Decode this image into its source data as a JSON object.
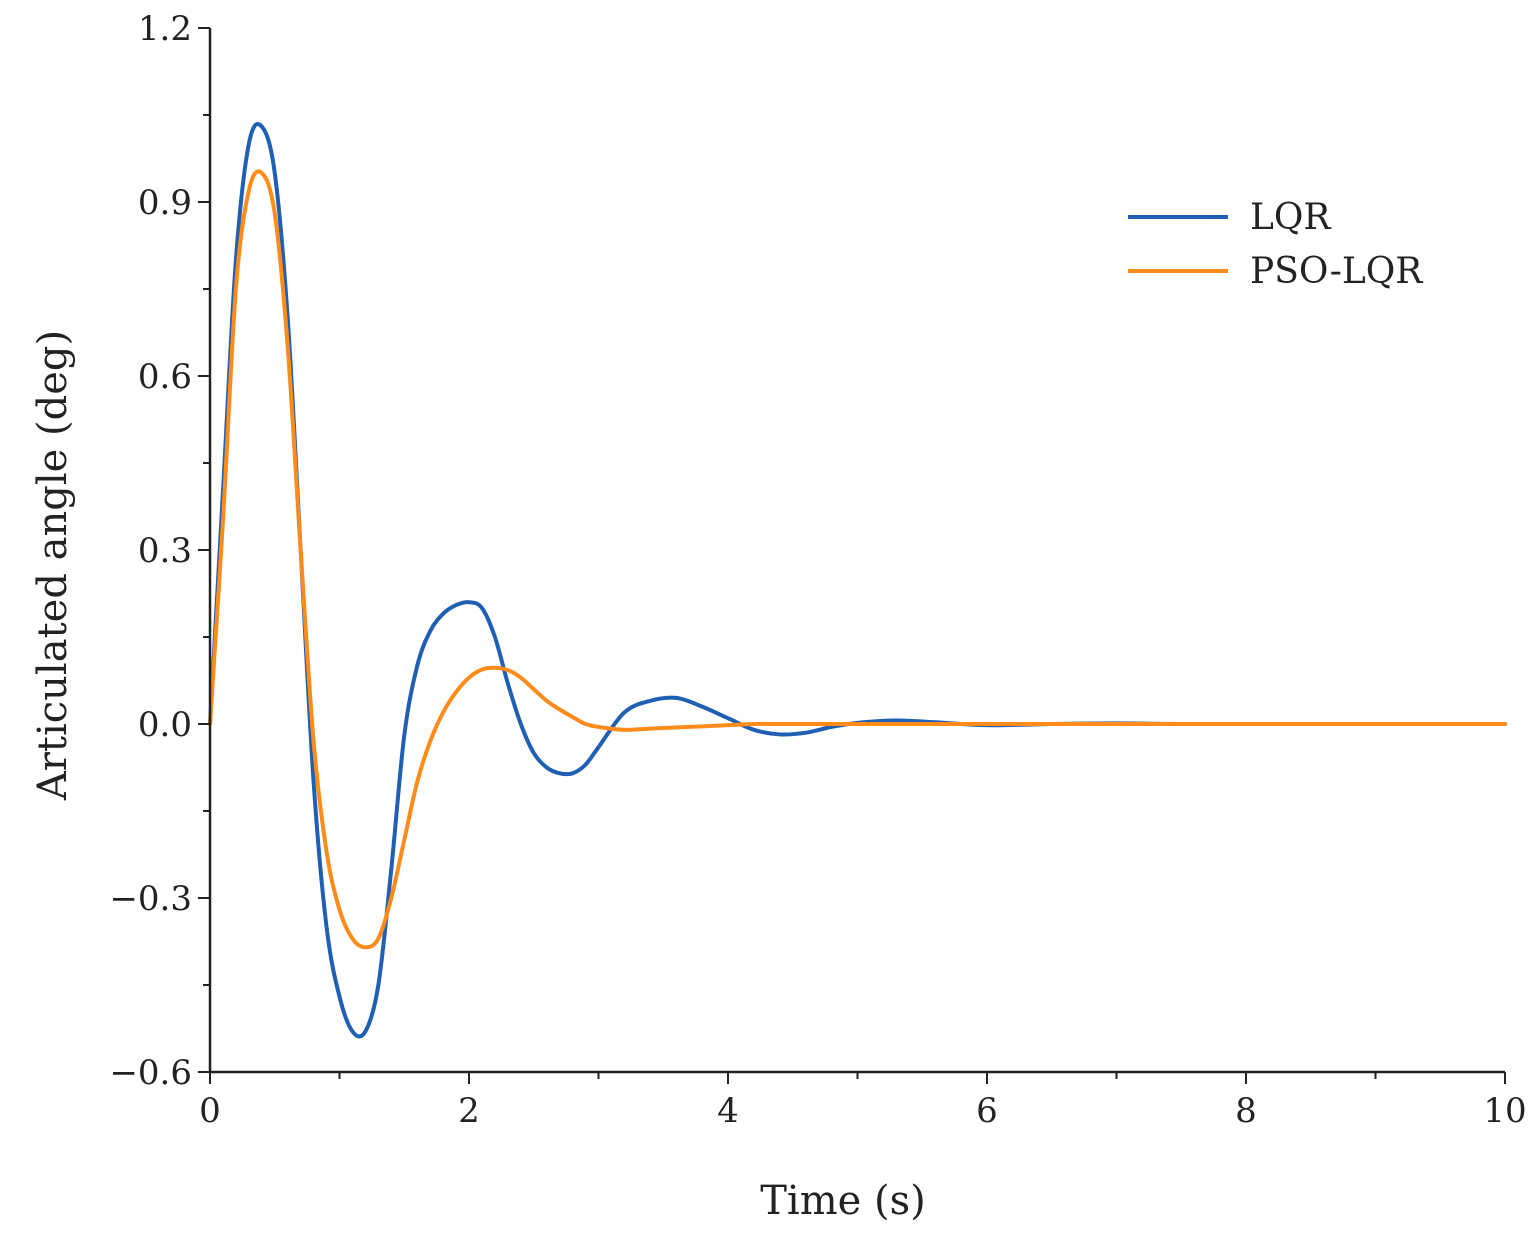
{
  "chart_data": {
    "type": "line",
    "title": "",
    "xlabel": "Time (s)",
    "ylabel": "Articulated angle (deg)",
    "xlim": [
      0,
      10
    ],
    "ylim": [
      -0.6,
      1.2
    ],
    "x_ticks": [
      "0",
      "2",
      "4",
      "6",
      "8",
      "10"
    ],
    "y_ticks": [
      "−0.6",
      "−0.3",
      "0.0",
      "0.3",
      "0.6",
      "0.9",
      "1.2"
    ],
    "grid": false,
    "legend_position": "top-right",
    "series": [
      {
        "name": "LQR",
        "color": "#1f5fb4",
        "x": [
          0,
          0.1,
          0.2,
          0.3,
          0.4,
          0.5,
          0.6,
          0.7,
          0.8,
          0.9,
          1.0,
          1.1,
          1.2,
          1.3,
          1.4,
          1.5,
          1.6,
          1.7,
          1.8,
          1.9,
          2.0,
          2.1,
          2.2,
          2.3,
          2.4,
          2.5,
          2.6,
          2.7,
          2.8,
          2.9,
          3.0,
          3.2,
          3.4,
          3.6,
          3.8,
          4.0,
          4.2,
          4.4,
          4.6,
          4.8,
          5.0,
          5.3,
          5.6,
          6.0,
          6.5,
          7.0,
          7.5,
          8.0,
          9.0,
          10.0
        ],
        "y": [
          0.0,
          0.4,
          0.8,
          1.0,
          1.03,
          0.95,
          0.7,
          0.3,
          -0.1,
          -0.35,
          -0.47,
          -0.53,
          -0.53,
          -0.45,
          -0.25,
          -0.02,
          0.1,
          0.16,
          0.19,
          0.205,
          0.21,
          0.2,
          0.15,
          0.07,
          0.0,
          -0.05,
          -0.075,
          -0.085,
          -0.085,
          -0.07,
          -0.04,
          0.02,
          0.04,
          0.045,
          0.03,
          0.01,
          -0.01,
          -0.018,
          -0.015,
          -0.005,
          0.002,
          0.006,
          0.003,
          -0.002,
          0.0,
          0.001,
          0.0,
          0.0,
          0.0,
          0.0
        ]
      },
      {
        "name": "PSO-LQR",
        "color": "#ff8c1a",
        "x": [
          0,
          0.1,
          0.2,
          0.3,
          0.4,
          0.5,
          0.6,
          0.7,
          0.8,
          0.9,
          1.0,
          1.1,
          1.2,
          1.3,
          1.4,
          1.5,
          1.6,
          1.7,
          1.8,
          1.9,
          2.0,
          2.1,
          2.2,
          2.3,
          2.4,
          2.5,
          2.6,
          2.7,
          2.8,
          2.9,
          3.0,
          3.2,
          3.4,
          3.6,
          3.8,
          4.0,
          4.2,
          4.4,
          4.6,
          5.0,
          5.5,
          6.0,
          7.0,
          8.0,
          9.0,
          10.0
        ],
        "y": [
          0.0,
          0.35,
          0.75,
          0.92,
          0.95,
          0.88,
          0.65,
          0.3,
          -0.03,
          -0.22,
          -0.32,
          -0.37,
          -0.385,
          -0.37,
          -0.3,
          -0.2,
          -0.1,
          -0.03,
          0.02,
          0.055,
          0.08,
          0.094,
          0.097,
          0.093,
          0.08,
          0.06,
          0.04,
          0.025,
          0.012,
          0.0,
          -0.005,
          -0.01,
          -0.008,
          -0.006,
          -0.004,
          -0.002,
          0.0,
          0.0,
          0.0,
          0.0,
          0.0,
          0.0,
          0.0,
          0.0,
          0.0,
          0.0
        ]
      }
    ]
  }
}
